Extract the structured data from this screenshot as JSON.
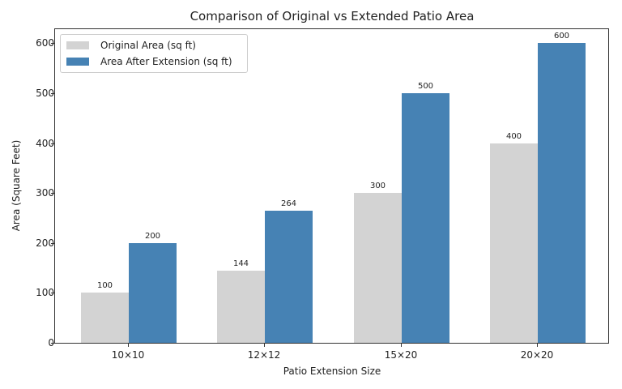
{
  "chart_data": {
    "type": "bar",
    "title": "Comparison of Original vs Extended Patio Area",
    "xlabel": "Patio Extension Size",
    "ylabel": "Area (Square Feet)",
    "categories": [
      "10×10",
      "12×12",
      "15×20",
      "20×20"
    ],
    "series": [
      {
        "name": "Original Area (sq ft)",
        "color": "#d3d3d3",
        "values": [
          100,
          144,
          300,
          400
        ]
      },
      {
        "name": "Area After Extension (sq ft)",
        "color": "#4682b4",
        "values": [
          200,
          264,
          500,
          600
        ]
      }
    ],
    "ylim": [
      0,
      630
    ],
    "yticks": [
      0,
      100,
      200,
      300,
      400,
      500,
      600
    ],
    "grid": false,
    "legend_position": "upper left",
    "data_labels": true
  }
}
